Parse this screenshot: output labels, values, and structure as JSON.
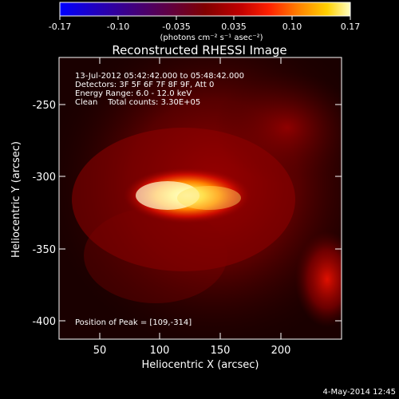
{
  "colorbar": {
    "ticks": [
      "-0.17",
      "-0.10",
      "-0.035",
      "0.035",
      "0.10",
      "0.17"
    ],
    "units_label": "(photons cm⁻² s⁻¹ asec⁻²)"
  },
  "plot": {
    "title": "Reconstructed RHESSI Image",
    "xlabel": "Heliocentric X (arcsec)",
    "ylabel": "Heliocentric Y (arcsec)",
    "xticks": [
      "50",
      "100",
      "150",
      "200"
    ],
    "yticks": [
      "-250",
      "-300",
      "-350",
      "-400"
    ]
  },
  "info": {
    "time_range": "13-Jul-2012 05:42:42.000 to 05:48:42.000",
    "detectors": "Detectors: 3F 5F 6F 7F 8F 9F, Att 0",
    "energy_range": "Energy Range: 6.0 - 12.0 keV",
    "algorithm": "Clean    Total counts: 3.30E+05",
    "peak_position": "Position of Peak = [109,-314]"
  },
  "footer": {
    "timestamp": "4-May-2014 12:45"
  }
}
